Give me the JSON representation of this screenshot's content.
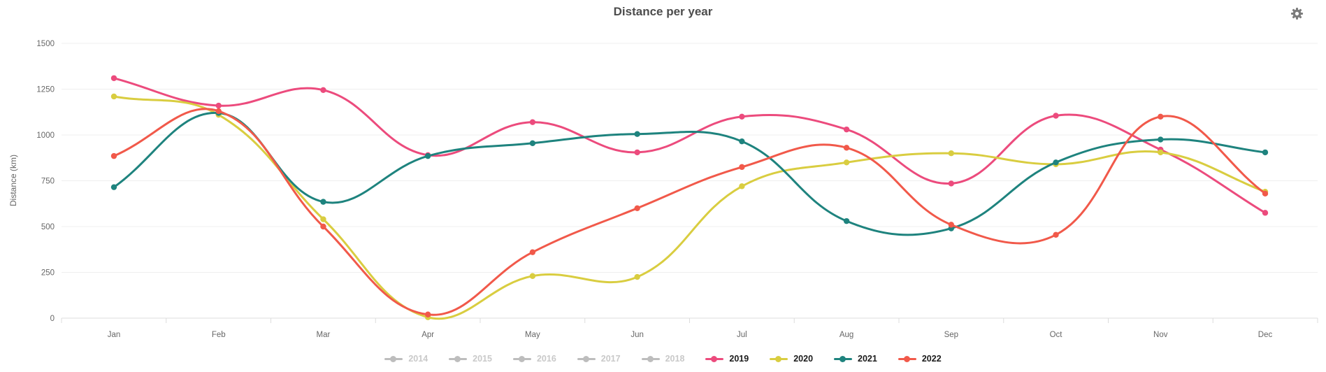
{
  "header": {
    "title": "Distance per year"
  },
  "chart_data": {
    "type": "line",
    "title": "Distance per year",
    "xlabel": "",
    "ylabel": "Distance (km)",
    "categories": [
      "Jan",
      "Feb",
      "Mar",
      "Apr",
      "May",
      "Jun",
      "Jul",
      "Aug",
      "Sep",
      "Oct",
      "Nov",
      "Dec"
    ],
    "y_ticks": [
      0,
      250,
      500,
      750,
      1000,
      1250,
      1500
    ],
    "ylim": [
      0,
      1500
    ],
    "grid": true,
    "curve": "smooth",
    "legend_position": "bottom",
    "series": [
      {
        "name": "2019",
        "color": "#ec4b7d",
        "values": [
          1310,
          1160,
          1245,
          890,
          1070,
          905,
          1100,
          1030,
          735,
          1105,
          920,
          575
        ]
      },
      {
        "name": "2020",
        "color": "#d9cd40",
        "values": [
          1210,
          1110,
          540,
          5,
          230,
          225,
          720,
          850,
          900,
          840,
          905,
          690
        ]
      },
      {
        "name": "2021",
        "color": "#1e837e",
        "values": [
          715,
          1120,
          635,
          885,
          955,
          1005,
          965,
          530,
          490,
          850,
          975,
          905
        ]
      },
      {
        "name": "2022",
        "color": "#f1594a",
        "values": [
          885,
          1130,
          500,
          20,
          360,
          600,
          825,
          930,
          510,
          455,
          1100,
          680
        ]
      }
    ],
    "legend": [
      {
        "label": "2014",
        "disabled": true,
        "color": "#bdbdbd"
      },
      {
        "label": "2015",
        "disabled": true,
        "color": "#bdbdbd"
      },
      {
        "label": "2016",
        "disabled": true,
        "color": "#bdbdbd"
      },
      {
        "label": "2017",
        "disabled": true,
        "color": "#bdbdbd"
      },
      {
        "label": "2018",
        "disabled": true,
        "color": "#bdbdbd"
      },
      {
        "label": "2019",
        "disabled": false,
        "color": "#ec4b7d"
      },
      {
        "label": "2020",
        "disabled": false,
        "color": "#d9cd40"
      },
      {
        "label": "2021",
        "disabled": false,
        "color": "#1e837e"
      },
      {
        "label": "2022",
        "disabled": false,
        "color": "#f1594a"
      }
    ],
    "colors": {
      "grid_line": "#efefef",
      "axis_line": "#dcdcdc",
      "axis_text": "#666666",
      "title_text": "#4c4c4c",
      "gear_icon": "#7c7c7c",
      "disabled_legend_text": "#c9c9c9"
    }
  }
}
